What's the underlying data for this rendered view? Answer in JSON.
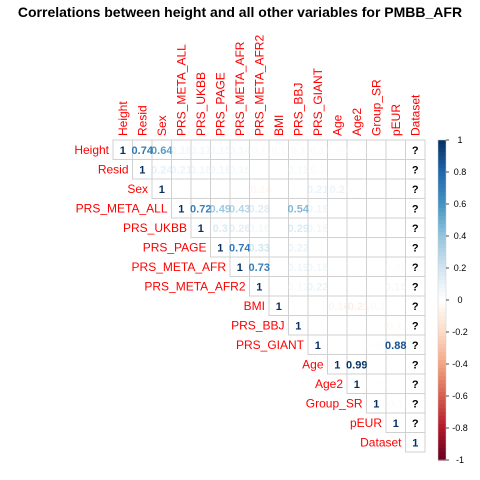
{
  "chart_data": {
    "type": "heatmap",
    "subtype": "correlation-upper-triangle",
    "title": "Correlations between height and all other variables for PMBB_AFR",
    "variables": [
      "Height",
      "Resid",
      "Sex",
      "PRS_META_ALL",
      "PRS_UKBB",
      "PRS_PAGE",
      "PRS_META_AFR",
      "PRS_META_AFR2",
      "BMI",
      "PRS_BBJ",
      "PRS_GIANT",
      "Age",
      "Age2",
      "Group_SR",
      "pEUR",
      "Dataset"
    ],
    "cells": [
      {
        "row": 0,
        "col": 0,
        "value": 1,
        "label": "1"
      },
      {
        "row": 0,
        "col": 1,
        "value": 0.74,
        "label": "0.74"
      },
      {
        "row": 0,
        "col": 2,
        "value": 0.64,
        "label": "0.64"
      },
      {
        "row": 0,
        "col": 3,
        "value": 0.18,
        "label": "0.18"
      },
      {
        "row": 0,
        "col": 4,
        "value": 0.17,
        "label": "0.17"
      },
      {
        "row": 0,
        "col": 5,
        "value": 0.15,
        "label": "0.15"
      },
      {
        "row": 0,
        "col": 6,
        "value": 0.14,
        "label": "0.14"
      },
      {
        "row": 0,
        "col": 7,
        "value": 0.1,
        "label": "0.1"
      },
      {
        "row": 0,
        "col": 8,
        "value": 0.1,
        "label": "0.1"
      },
      {
        "row": 0,
        "col": 9,
        "value": 0.1,
        "label": "0.1"
      },
      {
        "row": 0,
        "col": 10,
        "value": 0.1,
        "label": "0.1"
      },
      {
        "row": 0,
        "col": 11,
        "value": 0.06,
        "label": "0.06"
      },
      {
        "row": 0,
        "col": 12,
        "value": 0.06,
        "label": "0.06"
      },
      {
        "row": 0,
        "col": 15,
        "value": null,
        "label": "?"
      },
      {
        "row": 1,
        "col": 1,
        "value": 1,
        "label": "1"
      },
      {
        "row": 1,
        "col": 2,
        "value": 0.24,
        "label": "0.24"
      },
      {
        "row": 1,
        "col": 3,
        "value": 0.21,
        "label": "0.21"
      },
      {
        "row": 1,
        "col": 4,
        "value": 0.18,
        "label": "0.18"
      },
      {
        "row": 1,
        "col": 5,
        "value": 0.18,
        "label": "0.18"
      },
      {
        "row": 1,
        "col": 6,
        "value": 0.15,
        "label": "0.15"
      },
      {
        "row": 1,
        "col": 9,
        "value": 0.13,
        "label": "0.13"
      },
      {
        "row": 1,
        "col": 10,
        "value": 0.1,
        "label": "0.1"
      },
      {
        "row": 1,
        "col": 15,
        "value": null,
        "label": "?"
      },
      {
        "row": 2,
        "col": 2,
        "value": 1,
        "label": "1"
      },
      {
        "row": 2,
        "col": 7,
        "value": -0.14,
        "label": "-0.14"
      },
      {
        "row": 2,
        "col": 10,
        "value": 0.21,
        "label": "0.21"
      },
      {
        "row": 2,
        "col": 11,
        "value": 0.2,
        "label": "0.2"
      },
      {
        "row": 2,
        "col": 12,
        "value": 0.05,
        "label": "0.05"
      },
      {
        "row": 2,
        "col": 15,
        "value": null,
        "label": "?"
      },
      {
        "row": 3,
        "col": 3,
        "value": 1,
        "label": "1"
      },
      {
        "row": 3,
        "col": 4,
        "value": 0.72,
        "label": "0.72"
      },
      {
        "row": 3,
        "col": 5,
        "value": 0.49,
        "label": "0.49"
      },
      {
        "row": 3,
        "col": 6,
        "value": 0.43,
        "label": "0.43"
      },
      {
        "row": 3,
        "col": 7,
        "value": 0.28,
        "label": "0.28"
      },
      {
        "row": 3,
        "col": 9,
        "value": 0.54,
        "label": "0.54"
      },
      {
        "row": 3,
        "col": 10,
        "value": 0.19,
        "label": "0.19"
      },
      {
        "row": 3,
        "col": 15,
        "value": null,
        "label": "?"
      },
      {
        "row": 4,
        "col": 4,
        "value": 1,
        "label": "1"
      },
      {
        "row": 4,
        "col": 5,
        "value": 0.3,
        "label": "0.3"
      },
      {
        "row": 4,
        "col": 6,
        "value": 0.26,
        "label": "0.26"
      },
      {
        "row": 4,
        "col": 7,
        "value": 0.16,
        "label": "0.16"
      },
      {
        "row": 4,
        "col": 9,
        "value": 0.29,
        "label": "0.29"
      },
      {
        "row": 4,
        "col": 10,
        "value": 0.18,
        "label": "0.18"
      },
      {
        "row": 4,
        "col": 15,
        "value": null,
        "label": "?"
      },
      {
        "row": 5,
        "col": 5,
        "value": 1,
        "label": "1"
      },
      {
        "row": 5,
        "col": 6,
        "value": 0.74,
        "label": "0.74"
      },
      {
        "row": 5,
        "col": 7,
        "value": 0.33,
        "label": "0.33"
      },
      {
        "row": 5,
        "col": 9,
        "value": 0.22,
        "label": "0.22"
      },
      {
        "row": 5,
        "col": 15,
        "value": null,
        "label": "?"
      },
      {
        "row": 6,
        "col": 6,
        "value": 1,
        "label": "1"
      },
      {
        "row": 6,
        "col": 7,
        "value": 0.73,
        "label": "0.73"
      },
      {
        "row": 6,
        "col": 9,
        "value": 0.19,
        "label": "0.19"
      },
      {
        "row": 6,
        "col": 10,
        "value": 0.18,
        "label": "0.18"
      },
      {
        "row": 6,
        "col": 14,
        "value": 0.08,
        "label": "0.08"
      },
      {
        "row": 6,
        "col": 15,
        "value": null,
        "label": "?"
      },
      {
        "row": 7,
        "col": 7,
        "value": 1,
        "label": "1"
      },
      {
        "row": 7,
        "col": 9,
        "value": 0.12,
        "label": "0.12"
      },
      {
        "row": 7,
        "col": 10,
        "value": 0.22,
        "label": "0.22"
      },
      {
        "row": 7,
        "col": 14,
        "value": 0.15,
        "label": "0.15"
      },
      {
        "row": 7,
        "col": 15,
        "value": null,
        "label": "?"
      },
      {
        "row": 8,
        "col": 8,
        "value": 1,
        "label": "1"
      },
      {
        "row": 8,
        "col": 11,
        "value": -0.16,
        "label": "-0.16"
      },
      {
        "row": 8,
        "col": 12,
        "value": -0.21,
        "label": "-0.21"
      },
      {
        "row": 8,
        "col": 13,
        "value": -0.1,
        "label": "-0.1"
      },
      {
        "row": 8,
        "col": 15,
        "value": null,
        "label": "?"
      },
      {
        "row": 9,
        "col": 9,
        "value": 1,
        "label": "1"
      },
      {
        "row": 9,
        "col": 14,
        "value": -0.11,
        "label": "-0.11"
      },
      {
        "row": 9,
        "col": 15,
        "value": null,
        "label": "?"
      },
      {
        "row": 10,
        "col": 10,
        "value": 1,
        "label": "1"
      },
      {
        "row": 10,
        "col": 13,
        "value": 0.06,
        "label": "0.06"
      },
      {
        "row": 10,
        "col": 14,
        "value": 0.88,
        "label": "0.88"
      },
      {
        "row": 10,
        "col": 15,
        "value": null,
        "label": "?"
      },
      {
        "row": 11,
        "col": 11,
        "value": 1,
        "label": "1"
      },
      {
        "row": 11,
        "col": 12,
        "value": 0.99,
        "label": "0.99"
      },
      {
        "row": 11,
        "col": 13,
        "value": 0.05,
        "label": "0.05"
      },
      {
        "row": 11,
        "col": 15,
        "value": null,
        "label": "?"
      },
      {
        "row": 12,
        "col": 12,
        "value": 1,
        "label": "1"
      },
      {
        "row": 12,
        "col": 13,
        "value": 0.05,
        "label": "0.05"
      },
      {
        "row": 12,
        "col": 15,
        "value": null,
        "label": "?"
      },
      {
        "row": 13,
        "col": 13,
        "value": 1,
        "label": "1"
      },
      {
        "row": 13,
        "col": 14,
        "value": 0.1,
        "label": "0.1"
      },
      {
        "row": 13,
        "col": 15,
        "value": null,
        "label": "?"
      },
      {
        "row": 14,
        "col": 14,
        "value": 1,
        "label": "1"
      },
      {
        "row": 14,
        "col": 15,
        "value": null,
        "label": "?"
      },
      {
        "row": 15,
        "col": 15,
        "value": 1,
        "label": "1"
      }
    ],
    "colorbar": {
      "ticks": [
        "1",
        "0.8",
        "0.6",
        "0.4",
        "0.2",
        "0",
        "-0.2",
        "-0.4",
        "-0.6",
        "-0.8",
        "-1"
      ],
      "range": [
        -1,
        1
      ],
      "colors": {
        "negative": "#67001f",
        "mid": "#ffffff",
        "positive": "#053061"
      }
    },
    "grid": true,
    "legend_placement": "right",
    "label_color": "#ff0000"
  }
}
